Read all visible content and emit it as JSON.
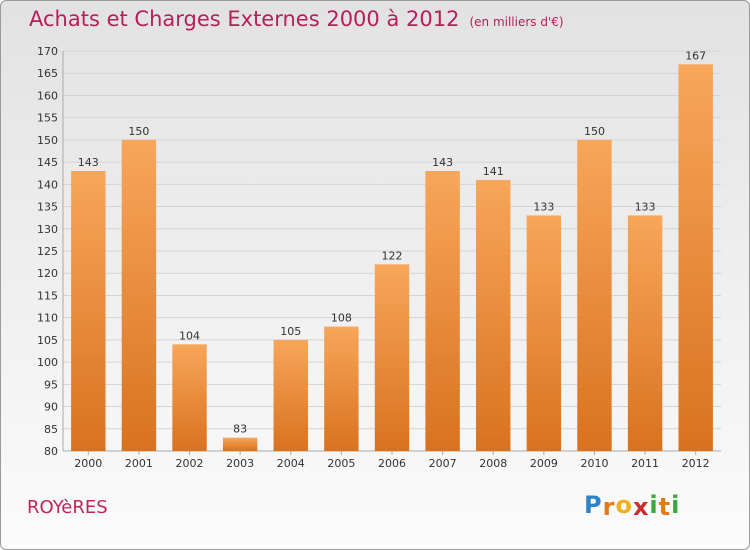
{
  "header": {
    "title": "Achats et Charges Externes 2000 à 2012",
    "subtitle": "(en milliers d'€)"
  },
  "footer": {
    "commune": "ROYèRES",
    "logo_text": "Proxiti",
    "logo_letters": [
      {
        "ch": "P",
        "color": "#2e86c8"
      },
      {
        "ch": "r",
        "color": "#e07a1a"
      },
      {
        "ch": "o",
        "color": "#f0b020"
      },
      {
        "ch": "x",
        "color": "#d02a2a"
      },
      {
        "ch": "i",
        "color": "#3aa83a"
      },
      {
        "ch": "t",
        "color": "#e07a1a"
      },
      {
        "ch": "i",
        "color": "#3aa83a"
      }
    ]
  },
  "colors": {
    "bar_light": "#f7a65a",
    "bar_dark": "#d9721f",
    "title": "#b51f5a",
    "grid": "#d4d4d4"
  },
  "chart_data": {
    "type": "bar",
    "title": "Achats et Charges Externes 2000 à 2012",
    "subtitle": "(en milliers d'€)",
    "categories": [
      "2000",
      "2001",
      "2002",
      "2003",
      "2004",
      "2005",
      "2006",
      "2007",
      "2008",
      "2009",
      "2010",
      "2011",
      "2012"
    ],
    "values": [
      143,
      150,
      104,
      83,
      105,
      108,
      122,
      143,
      141,
      133,
      150,
      133,
      167
    ],
    "ylim": [
      80,
      170
    ],
    "yticks": [
      80,
      85,
      90,
      95,
      100,
      105,
      110,
      115,
      120,
      125,
      130,
      135,
      140,
      145,
      150,
      155,
      160,
      165,
      170
    ],
    "xlabel": "",
    "ylabel": "",
    "grid": true
  }
}
